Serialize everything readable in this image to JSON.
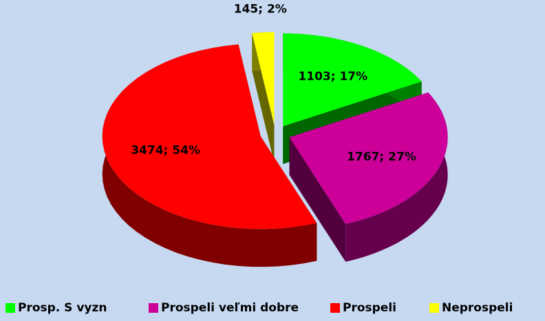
{
  "chart_data": {
    "type": "pie3d",
    "categories": [
      "Prosp. S vyzn",
      "Prospeli veľmi dobre",
      "Prospeli",
      "Neprospeli"
    ],
    "values": [
      1103,
      1767,
      3474,
      145
    ],
    "value_labels": [
      "1103; 17%",
      "1767; 27%",
      "3474; 54%",
      "145; 2%"
    ],
    "colors": [
      "#00ff00",
      "#cc0099",
      "#ff0000",
      "#ffff00"
    ],
    "legend": "bottom"
  }
}
